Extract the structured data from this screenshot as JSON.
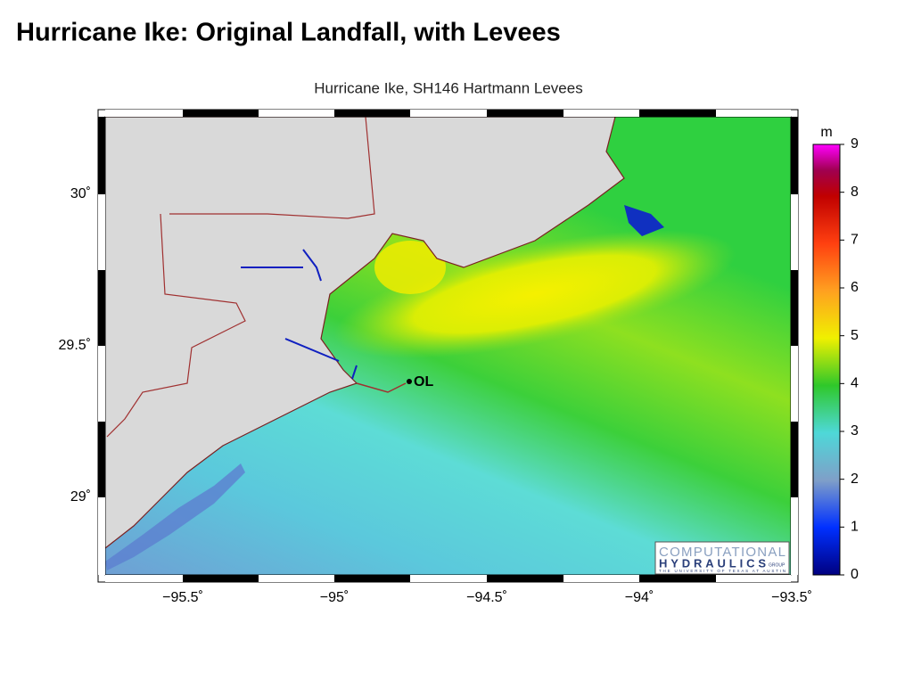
{
  "slide": {
    "title": "Hurricane Ike: Original Landfall, with Levees"
  },
  "map": {
    "title": "Hurricane Ike, SH146 Hartmann Levees",
    "x_tick_labels": [
      "−95.5˚",
      "−95˚",
      "−94.5˚",
      "−94˚",
      "−93.5˚"
    ],
    "y_tick_labels": [
      "30˚",
      "29.5˚",
      "29˚"
    ],
    "marker_label": "OL",
    "colorbar": {
      "unit": "m",
      "range": [
        0,
        9
      ],
      "ticks": [
        0,
        1,
        2,
        3,
        4,
        5,
        6,
        7,
        8,
        9
      ]
    },
    "logo": {
      "line1": "COMPUTATIONAL",
      "line2": "HYDRAULICS",
      "group": "GROUP",
      "university": "THE UNIVERSITY OF TEXAS AT AUSTIN"
    }
  }
}
